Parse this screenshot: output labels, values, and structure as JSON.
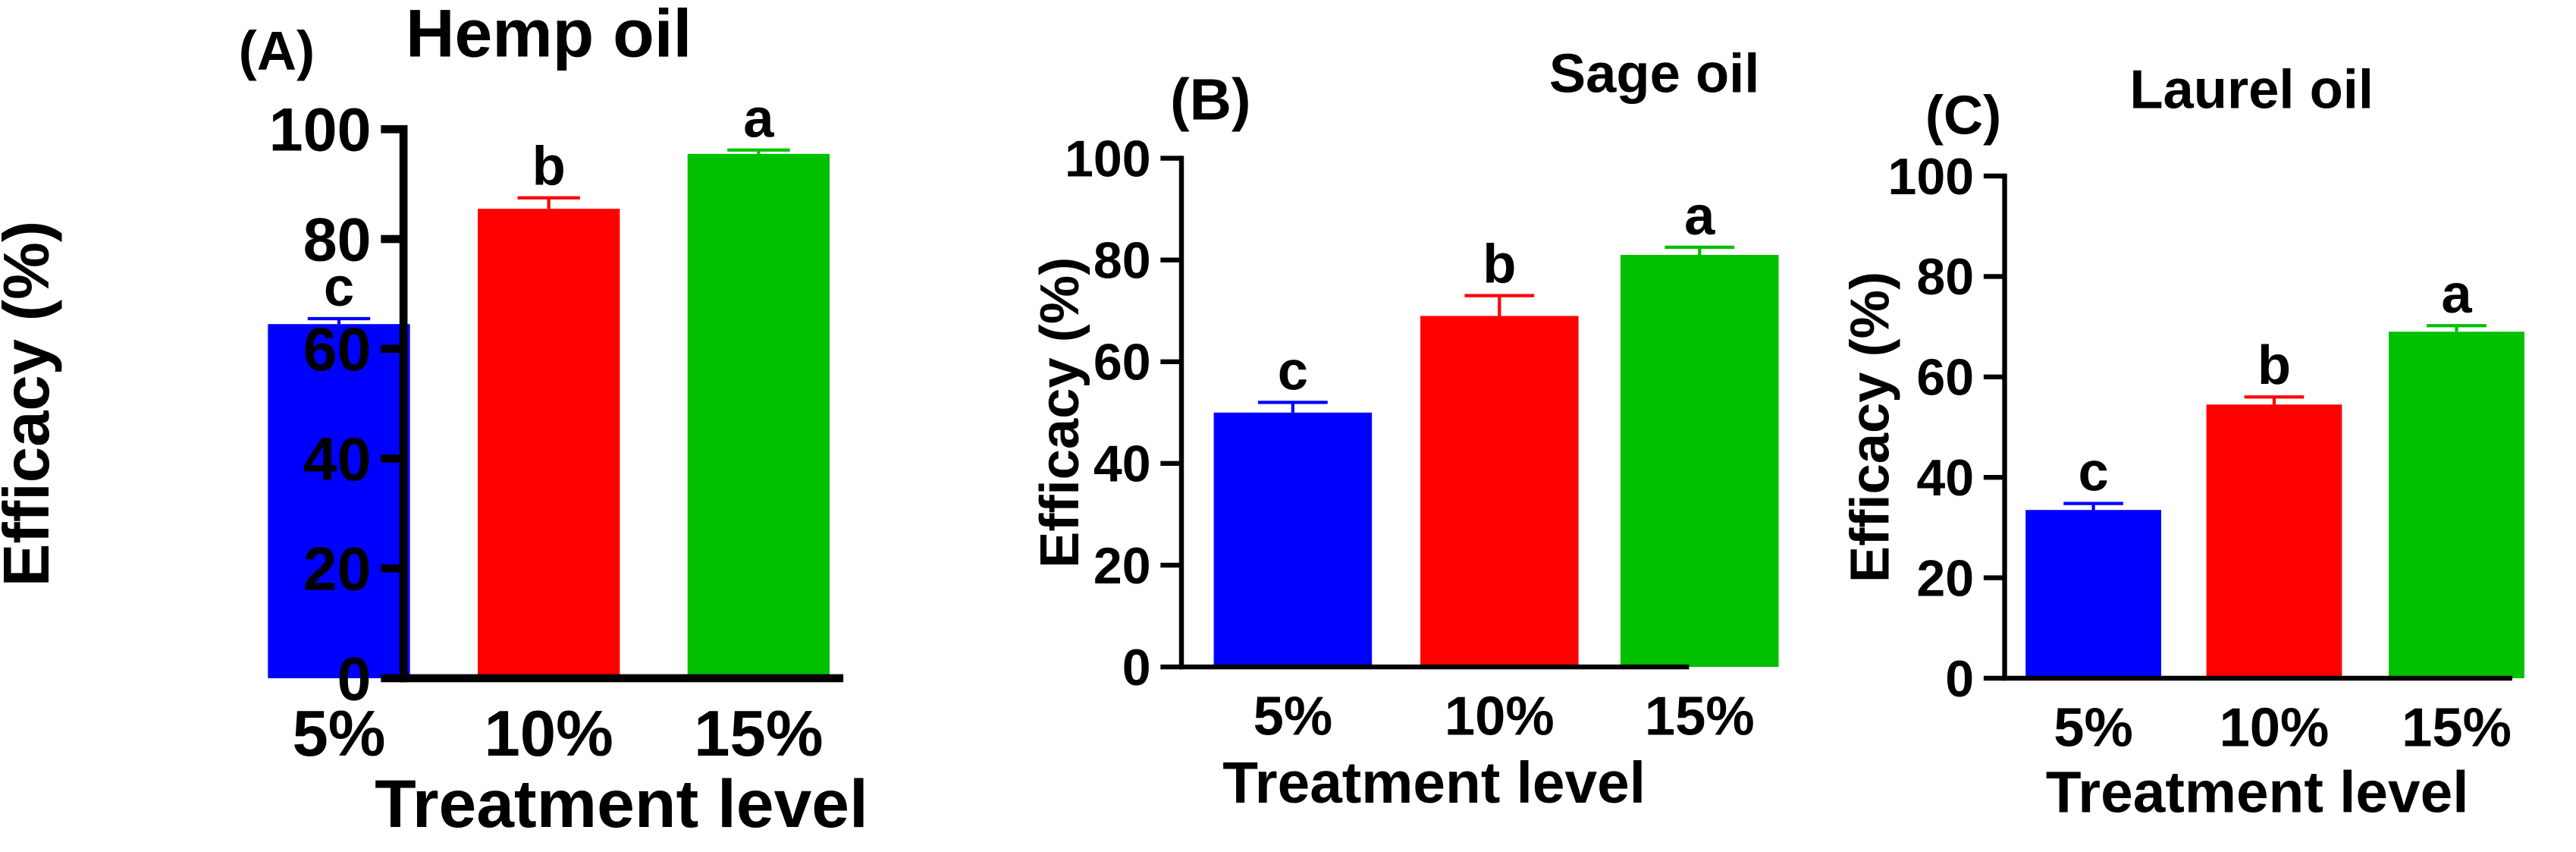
{
  "chart_data": [
    {
      "panel_label": "(A)",
      "type": "bar",
      "title": "Hemp oil",
      "xlabel": "Treatment level",
      "ylabel": "Efficacy (%)",
      "ylim": [
        0,
        100
      ],
      "yticks": [
        0,
        20,
        40,
        60,
        80,
        100
      ],
      "categories": [
        "5%",
        "10%",
        "15%"
      ],
      "values": [
        64.5,
        85.5,
        95.5
      ],
      "errors": [
        1.0,
        2.0,
        0.7
      ],
      "significance": [
        "c",
        "b",
        "a"
      ],
      "colors": [
        "#0000ff",
        "#ff0000",
        "#00c000"
      ]
    },
    {
      "panel_label": "(B)",
      "type": "bar",
      "title": "Sage oil",
      "xlabel": "Treatment level",
      "ylabel": "Efficacy (%)",
      "ylim": [
        0,
        100
      ],
      "yticks": [
        0,
        20,
        40,
        60,
        80,
        100
      ],
      "categories": [
        "5%",
        "10%",
        "15%"
      ],
      "values": [
        50.0,
        69.0,
        81.0
      ],
      "errors": [
        2.0,
        4.0,
        1.5
      ],
      "significance": [
        "c",
        "b",
        "a"
      ],
      "colors": [
        "#0000ff",
        "#ff0000",
        "#00c000"
      ]
    },
    {
      "panel_label": "(C)",
      "type": "bar",
      "title": "Laurel oil",
      "xlabel": "Treatment level",
      "ylabel": "Efficacy (%)",
      "ylim": [
        0,
        100
      ],
      "yticks": [
        0,
        20,
        40,
        60,
        80,
        100
      ],
      "categories": [
        "5%",
        "10%",
        "15%"
      ],
      "values": [
        33.5,
        54.5,
        69.0
      ],
      "errors": [
        1.3,
        1.5,
        1.2
      ],
      "significance": [
        "c",
        "b",
        "a"
      ],
      "colors": [
        "#0000ff",
        "#ff0000",
        "#00c000"
      ]
    }
  ]
}
